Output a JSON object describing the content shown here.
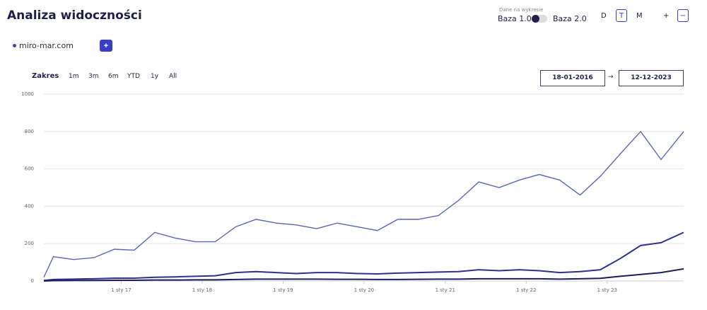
{
  "header": {
    "title": "Analiza widoczności",
    "data_label": "Dane na wykresie",
    "base_1": "Baza 1.0",
    "base_2": "Baza 2.0",
    "granularity": [
      "D",
      "T",
      "M"
    ],
    "zoom_in": "+",
    "zoom_out": "−"
  },
  "domains": {
    "items": [
      "miro-mar.com"
    ],
    "add": "+"
  },
  "range": {
    "label": "Zakres",
    "options": [
      "1m",
      "3m",
      "6m",
      "YTD",
      "1y",
      "All"
    ],
    "from": "18-01-2016",
    "arrow": "→",
    "to": "12-12-2023"
  },
  "chart_data": {
    "type": "line",
    "x": [
      "2016-01-18",
      "2016-03-01",
      "2016-06-01",
      "2016-09-01",
      "2016-12-01",
      "2017-03-01",
      "2017-06-01",
      "2017-09-01",
      "2017-12-01",
      "2018-03-01",
      "2018-06-01",
      "2018-09-01",
      "2018-12-01",
      "2019-03-01",
      "2019-06-01",
      "2019-09-01",
      "2019-12-01",
      "2020-03-01",
      "2020-06-01",
      "2020-09-01",
      "2020-12-01",
      "2021-03-01",
      "2021-06-01",
      "2021-09-01",
      "2021-12-01",
      "2022-03-01",
      "2022-06-01",
      "2022-09-01",
      "2022-12-01",
      "2023-03-01",
      "2023-06-01",
      "2023-09-01",
      "2023-12-12"
    ],
    "series": [
      {
        "color": "#5866bd",
        "values": [
          20,
          130,
          115,
          125,
          170,
          165,
          260,
          230,
          210,
          210,
          290,
          330,
          310,
          300,
          280,
          310,
          290,
          270,
          330,
          330,
          350,
          430,
          530,
          500,
          540,
          570,
          540,
          460,
          560,
          680,
          800,
          650,
          800
        ]
      },
      {
        "color": "#2d3190",
        "values": [
          3,
          8,
          10,
          12,
          15,
          15,
          20,
          22,
          25,
          28,
          45,
          50,
          45,
          40,
          45,
          45,
          40,
          38,
          42,
          45,
          48,
          50,
          60,
          55,
          60,
          55,
          45,
          50,
          60,
          120,
          190,
          205,
          260
        ]
      },
      {
        "color": "#1b1e5c",
        "values": [
          0,
          2,
          3,
          3,
          4,
          4,
          5,
          5,
          6,
          6,
          8,
          10,
          10,
          10,
          10,
          9,
          9,
          8,
          8,
          9,
          10,
          10,
          12,
          12,
          12,
          12,
          10,
          12,
          14,
          25,
          35,
          45,
          65
        ]
      }
    ],
    "xlim": [
      "2016-01-18",
      "2023-12-12"
    ],
    "xticks": [
      {
        "value": "2017-01-01",
        "label": "1 sty 17"
      },
      {
        "value": "2018-01-01",
        "label": "1 sty 18"
      },
      {
        "value": "2019-01-01",
        "label": "1 sty 19"
      },
      {
        "value": "2020-01-01",
        "label": "1 sty 20"
      },
      {
        "value": "2021-01-01",
        "label": "1 sty 21"
      },
      {
        "value": "2022-01-01",
        "label": "1 sty 22"
      },
      {
        "value": "2023-01-01",
        "label": "1 sty 23"
      }
    ],
    "ylim": [
      0,
      1000
    ],
    "yticks": [
      0,
      200,
      400,
      600,
      800,
      1000
    ],
    "grid": true
  }
}
